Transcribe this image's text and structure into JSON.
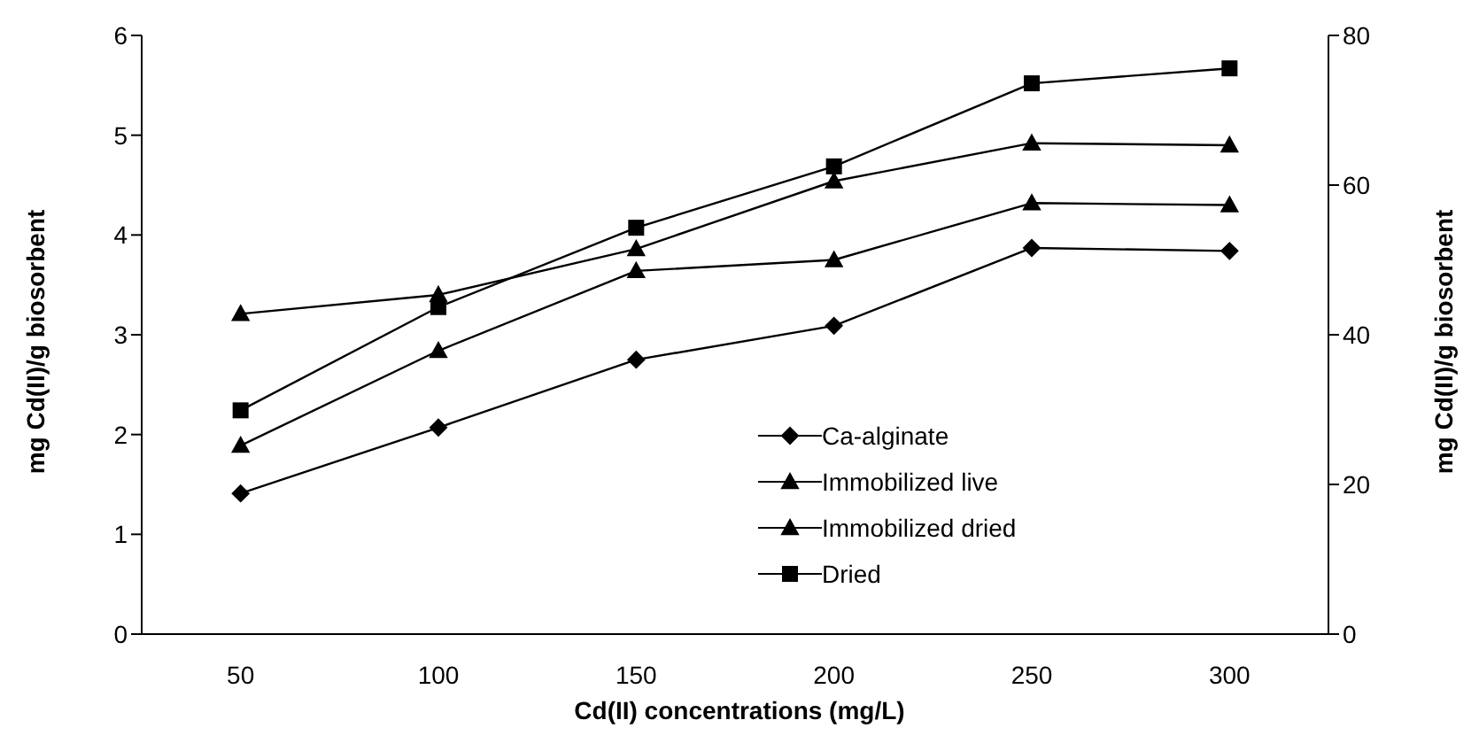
{
  "chart_data": {
    "type": "line",
    "xlabel": "Cd(II) concentrations (mg/L)",
    "ylabel": "mg Cd(II)/g biosorbent",
    "y2label": "mg Cd(II)/g biosorbent",
    "categories": [
      "50",
      "100",
      "150",
      "200",
      "250",
      "300"
    ],
    "ylim": [
      0,
      6
    ],
    "yticks": [
      0,
      1,
      2,
      3,
      4,
      5,
      6
    ],
    "y2lim": [
      0,
      80
    ],
    "y2ticks": [
      0,
      20,
      40,
      60,
      80
    ],
    "grid": false,
    "legend": "center",
    "line_style": "solid",
    "series": [
      {
        "name": "Ca-alginate",
        "color": "#000000",
        "marker": "diamond",
        "values": [
          1.41,
          2.07,
          2.75,
          3.09,
          3.87,
          3.84
        ]
      },
      {
        "name": "Immobilized live",
        "color": "#000000",
        "marker": "triangle",
        "values": [
          1.89,
          2.84,
          3.64,
          3.75,
          4.32,
          4.3
        ]
      },
      {
        "name": "Immobilized dried",
        "color": "#000000",
        "marker": "triangle",
        "values": [
          3.21,
          3.4,
          3.86,
          4.54,
          4.92,
          4.9
        ]
      },
      {
        "name": "Dried",
        "color": "#000000",
        "marker": "square",
        "axis": "y2",
        "values": [
          29.9,
          43.7,
          54.3,
          62.5,
          73.6,
          75.6
        ]
      }
    ]
  }
}
